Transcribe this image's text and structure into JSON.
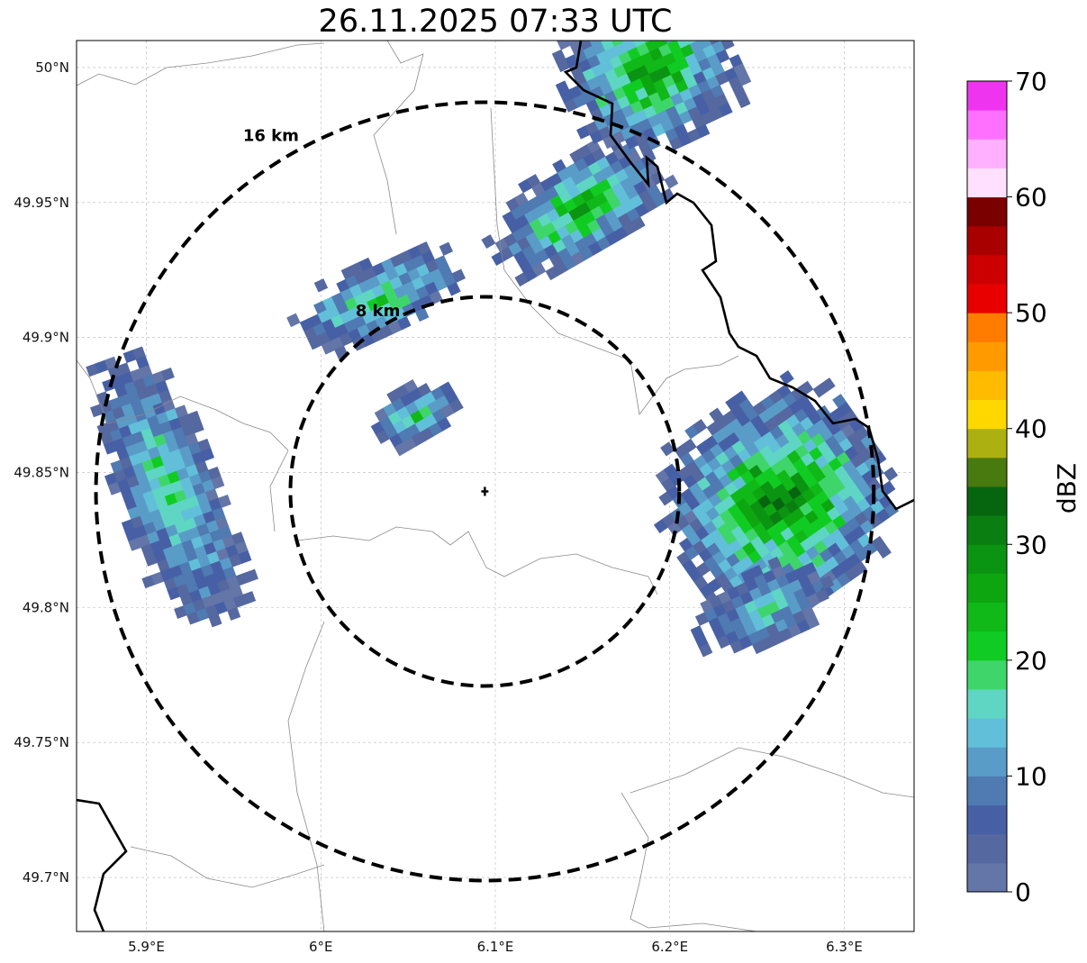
{
  "title": "26.11.2025 07:33 UTC",
  "map": {
    "extent": {
      "lon_min": 5.86,
      "lon_max": 6.34,
      "lat_min": 49.68,
      "lat_max": 50.01
    },
    "lon_ticks": [
      {
        "value": 5.9,
        "label": "5.9°E"
      },
      {
        "value": 6.0,
        "label": "6°E"
      },
      {
        "value": 6.1,
        "label": "6.1°E"
      },
      {
        "value": 6.2,
        "label": "6.2°E"
      },
      {
        "value": 6.3,
        "label": "6.3°E"
      }
    ],
    "lat_ticks": [
      {
        "value": 50.0,
        "label": "50°N"
      },
      {
        "value": 49.95,
        "label": "49.95°N"
      },
      {
        "value": 49.9,
        "label": "49.9°N"
      },
      {
        "value": 49.85,
        "label": "49.85°N"
      },
      {
        "value": 49.8,
        "label": "49.8°N"
      },
      {
        "value": 49.75,
        "label": "49.75°N"
      },
      {
        "value": 49.7,
        "label": "49.7°N"
      }
    ],
    "radar_site": {
      "lon": 6.094,
      "lat": 49.843
    },
    "range_rings": [
      {
        "km": 8,
        "label": "8 km"
      },
      {
        "km": 16,
        "label": "16 km"
      }
    ],
    "grid": true
  },
  "colorbar": {
    "label": "dBZ",
    "min": 0,
    "max": 70,
    "ticks": [
      "0",
      "10",
      "20",
      "30",
      "40",
      "50",
      "60",
      "70"
    ],
    "colors": [
      "#6475a8",
      "#5568a0",
      "#4760a5",
      "#4f7ab2",
      "#5a9cc8",
      "#62bfd9",
      "#5ed6c3",
      "#3ed66a",
      "#10cc22",
      "#10b818",
      "#0ea610",
      "#0a9412",
      "#0a7e10",
      "#066610",
      "#487a10",
      "#acb010",
      "#ffd800",
      "#ffbb00",
      "#ff9a00",
      "#ff7c00",
      "#e80000",
      "#cc0000",
      "#a80000",
      "#7a0000",
      "#ffe0ff",
      "#ffb0ff",
      "#ff70ff",
      "#ef34ef"
    ]
  },
  "echo_cells": [
    {
      "lon": 6.145,
      "lat": 49.948,
      "rx": 0.055,
      "ry": 0.018,
      "angle": -30,
      "peak": 26
    },
    {
      "lon": 6.185,
      "lat": 50.0,
      "rx": 0.05,
      "ry": 0.03,
      "angle": -25,
      "peak": 28
    },
    {
      "lon": 6.03,
      "lat": 49.915,
      "rx": 0.05,
      "ry": 0.014,
      "angle": -25,
      "peak": 21
    },
    {
      "lon": 6.05,
      "lat": 49.872,
      "rx": 0.028,
      "ry": 0.01,
      "angle": -30,
      "peak": 20
    },
    {
      "lon": 5.91,
      "lat": 49.845,
      "rx": 0.03,
      "ry": 0.055,
      "angle": -20,
      "peak": 19
    },
    {
      "lon": 6.26,
      "lat": 49.84,
      "rx": 0.065,
      "ry": 0.04,
      "angle": -35,
      "peak": 31
    },
    {
      "lon": 6.25,
      "lat": 49.8,
      "rx": 0.04,
      "ry": 0.014,
      "angle": -25,
      "peak": 16
    }
  ]
}
